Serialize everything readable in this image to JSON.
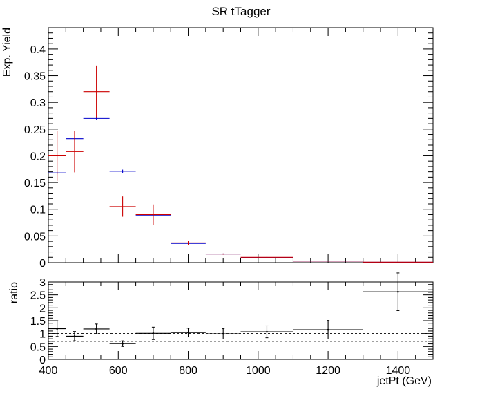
{
  "chart_data": [
    {
      "type": "scatter",
      "title": "SR tTagger",
      "ylabel": "Exp. Yield",
      "xlim": [
        400,
        1500
      ],
      "ylim": [
        0,
        0.44
      ],
      "yticks": [
        "0",
        "0.05",
        "0.1",
        "0.15",
        "0.2",
        "0.25",
        "0.3",
        "0.35",
        "0.4"
      ],
      "series": [
        {
          "color": "#0000cc",
          "points": [
            {
              "x": 425,
              "xerr": 25,
              "y": 0.168,
              "yerr": 0.002
            },
            {
              "x": 475,
              "xerr": 25,
              "y": 0.232,
              "yerr": 0.002
            },
            {
              "x": 537.5,
              "xerr": 37.5,
              "y": 0.27,
              "yerr": 0.003
            },
            {
              "x": 612.5,
              "xerr": 37.5,
              "y": 0.171,
              "yerr": 0.003
            },
            {
              "x": 700,
              "xerr": 50,
              "y": 0.089,
              "yerr": 0.002
            },
            {
              "x": 800,
              "xerr": 50,
              "y": 0.036,
              "yerr": 0.001
            },
            {
              "x": 900,
              "xerr": 50,
              "y": 0.016,
              "yerr": 0.001
            },
            {
              "x": 1025,
              "xerr": 75,
              "y": 0.0095,
              "yerr": 0.0005
            },
            {
              "x": 1200,
              "xerr": 100,
              "y": 0.003,
              "yerr": 0.0003
            },
            {
              "x": 1400,
              "xerr": 100,
              "y": 0.0008,
              "yerr": 0.0002
            }
          ]
        },
        {
          "color": "#cc0000",
          "points": [
            {
              "x": 425,
              "xerr": 25,
              "y": 0.2,
              "yerr": 0.047
            },
            {
              "x": 475,
              "xerr": 25,
              "y": 0.208,
              "yerr": 0.039
            },
            {
              "x": 537.5,
              "xerr": 37.5,
              "y": 0.32,
              "yerr": 0.049
            },
            {
              "x": 612.5,
              "xerr": 37.5,
              "y": 0.105,
              "yerr": 0.019
            },
            {
              "x": 700,
              "xerr": 50,
              "y": 0.09,
              "yerr": 0.019
            },
            {
              "x": 800,
              "xerr": 50,
              "y": 0.037,
              "yerr": 0.004
            },
            {
              "x": 900,
              "xerr": 50,
              "y": 0.016,
              "yerr": 0.001
            },
            {
              "x": 1025,
              "xerr": 75,
              "y": 0.01,
              "yerr": 0.001
            },
            {
              "x": 1200,
              "xerr": 100,
              "y": 0.003,
              "yerr": 0.0005
            },
            {
              "x": 1400,
              "xerr": 100,
              "y": 0.0009,
              "yerr": 0.0005
            }
          ]
        }
      ]
    },
    {
      "type": "scatter",
      "xlabel": "jetPt (GeV)",
      "ylabel": "ratio",
      "xlim": [
        400,
        1500
      ],
      "ylim": [
        0,
        3
      ],
      "xticks": [
        "400",
        "600",
        "800",
        "1000",
        "1200",
        "1400"
      ],
      "yticks": [
        "0",
        "0.5",
        "1",
        "1.5",
        "2",
        "2.5",
        "3"
      ],
      "reference_lines": [
        0.7,
        1.0,
        1.3
      ],
      "series": [
        {
          "color": "#000000",
          "points": [
            {
              "x": 425,
              "xerr": 25,
              "y": 1.19,
              "yerr": 0.3
            },
            {
              "x": 475,
              "xerr": 25,
              "y": 0.9,
              "yerr": 0.18
            },
            {
              "x": 537.5,
              "xerr": 37.5,
              "y": 1.18,
              "yerr": 0.19
            },
            {
              "x": 612.5,
              "xerr": 37.5,
              "y": 0.61,
              "yerr": 0.11
            },
            {
              "x": 700,
              "xerr": 50,
              "y": 1.01,
              "yerr": 0.24
            },
            {
              "x": 800,
              "xerr": 50,
              "y": 1.04,
              "yerr": 0.17
            },
            {
              "x": 900,
              "xerr": 50,
              "y": 0.99,
              "yerr": 0.2
            },
            {
              "x": 1025,
              "xerr": 75,
              "y": 1.07,
              "yerr": 0.23
            },
            {
              "x": 1200,
              "xerr": 100,
              "y": 1.15,
              "yerr": 0.36
            },
            {
              "x": 1400,
              "xerr": 100,
              "y": 2.62,
              "yerr": 0.73
            }
          ]
        }
      ]
    }
  ],
  "colors": {
    "frame": "#000000",
    "background": "#ffffff"
  }
}
